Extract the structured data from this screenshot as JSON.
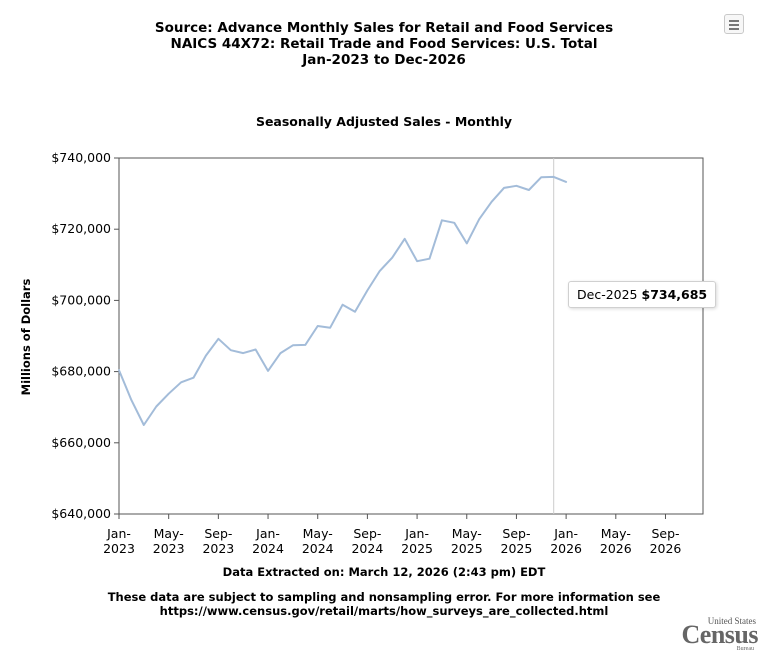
{
  "header": {
    "title_line1": "Source: Advance Monthly Sales for Retail and Food Services",
    "title_line2": "NAICS 44X72: Retail Trade and Food Services: U.S. Total",
    "title_line3": "Jan-2023 to Dec-2026"
  },
  "menu_icon": "hamburger-menu-icon",
  "tooltip": {
    "date": "Dec-2025",
    "value": "$734,685"
  },
  "xlabel": "Data Extracted on: March 12, 2026 (2:43 pm) EDT",
  "note_line1": "These data are subject to sampling and nonsampling error. For more information see",
  "note_line2": "https://www.census.gov/retail/marts/how_surveys_are_collected.html",
  "logo": {
    "top": "United States",
    "main": "Census",
    "bottom": "Bureau"
  },
  "colors": {
    "line": "#a3bcd9",
    "axis": "#555555",
    "cursor": "#cccccc"
  },
  "chart_data": {
    "type": "line",
    "title": "Seasonally Adjusted Sales - Monthly",
    "ylabel": "Millions of Dollars",
    "ylim": [
      640000,
      740000
    ],
    "yticks": [
      640000,
      660000,
      680000,
      700000,
      720000,
      740000
    ],
    "ytick_labels": [
      "$640,000",
      "$660,000",
      "$680,000",
      "$700,000",
      "$720,000",
      "$740,000"
    ],
    "xlim": [
      "Jan-2023",
      "Dec-2026"
    ],
    "xticks": [
      {
        "index": 0,
        "line1": "Jan-",
        "line2": "2023"
      },
      {
        "index": 4,
        "line1": "May-",
        "line2": "2023"
      },
      {
        "index": 8,
        "line1": "Sep-",
        "line2": "2023"
      },
      {
        "index": 12,
        "line1": "Jan-",
        "line2": "2024"
      },
      {
        "index": 16,
        "line1": "May-",
        "line2": "2024"
      },
      {
        "index": 20,
        "line1": "Sep-",
        "line2": "2024"
      },
      {
        "index": 24,
        "line1": "Jan-",
        "line2": "2025"
      },
      {
        "index": 28,
        "line1": "May-",
        "line2": "2025"
      },
      {
        "index": 32,
        "line1": "Sep-",
        "line2": "2025"
      },
      {
        "index": 36,
        "line1": "Jan-",
        "line2": "2026"
      },
      {
        "index": 40,
        "line1": "May-",
        "line2": "2026"
      },
      {
        "index": 44,
        "line1": "Sep-",
        "line2": "2026"
      }
    ],
    "x": [
      "Jan-2023",
      "Feb-2023",
      "Mar-2023",
      "Apr-2023",
      "May-2023",
      "Jun-2023",
      "Jul-2023",
      "Aug-2023",
      "Sep-2023",
      "Oct-2023",
      "Nov-2023",
      "Dec-2023",
      "Jan-2024",
      "Feb-2024",
      "Mar-2024",
      "Apr-2024",
      "May-2024",
      "Jun-2024",
      "Jul-2024",
      "Aug-2024",
      "Sep-2024",
      "Oct-2024",
      "Nov-2024",
      "Dec-2024",
      "Jan-2025",
      "Feb-2025",
      "Mar-2025",
      "Apr-2025",
      "May-2025",
      "Jun-2025",
      "Jul-2025",
      "Aug-2025",
      "Sep-2025",
      "Oct-2025",
      "Nov-2025",
      "Dec-2025",
      "Jan-2026"
    ],
    "values": [
      680400,
      672000,
      665000,
      670200,
      673800,
      677000,
      678300,
      684500,
      689200,
      686000,
      685200,
      686200,
      680200,
      685200,
      687400,
      687500,
      692800,
      692300,
      698800,
      696800,
      702800,
      708300,
      712000,
      717300,
      711000,
      711700,
      722500,
      721800,
      716000,
      722800,
      727700,
      731600,
      732200,
      731000,
      734600,
      734685,
      733300
    ],
    "cursor_index": 35,
    "grid": false,
    "legend": "none"
  }
}
